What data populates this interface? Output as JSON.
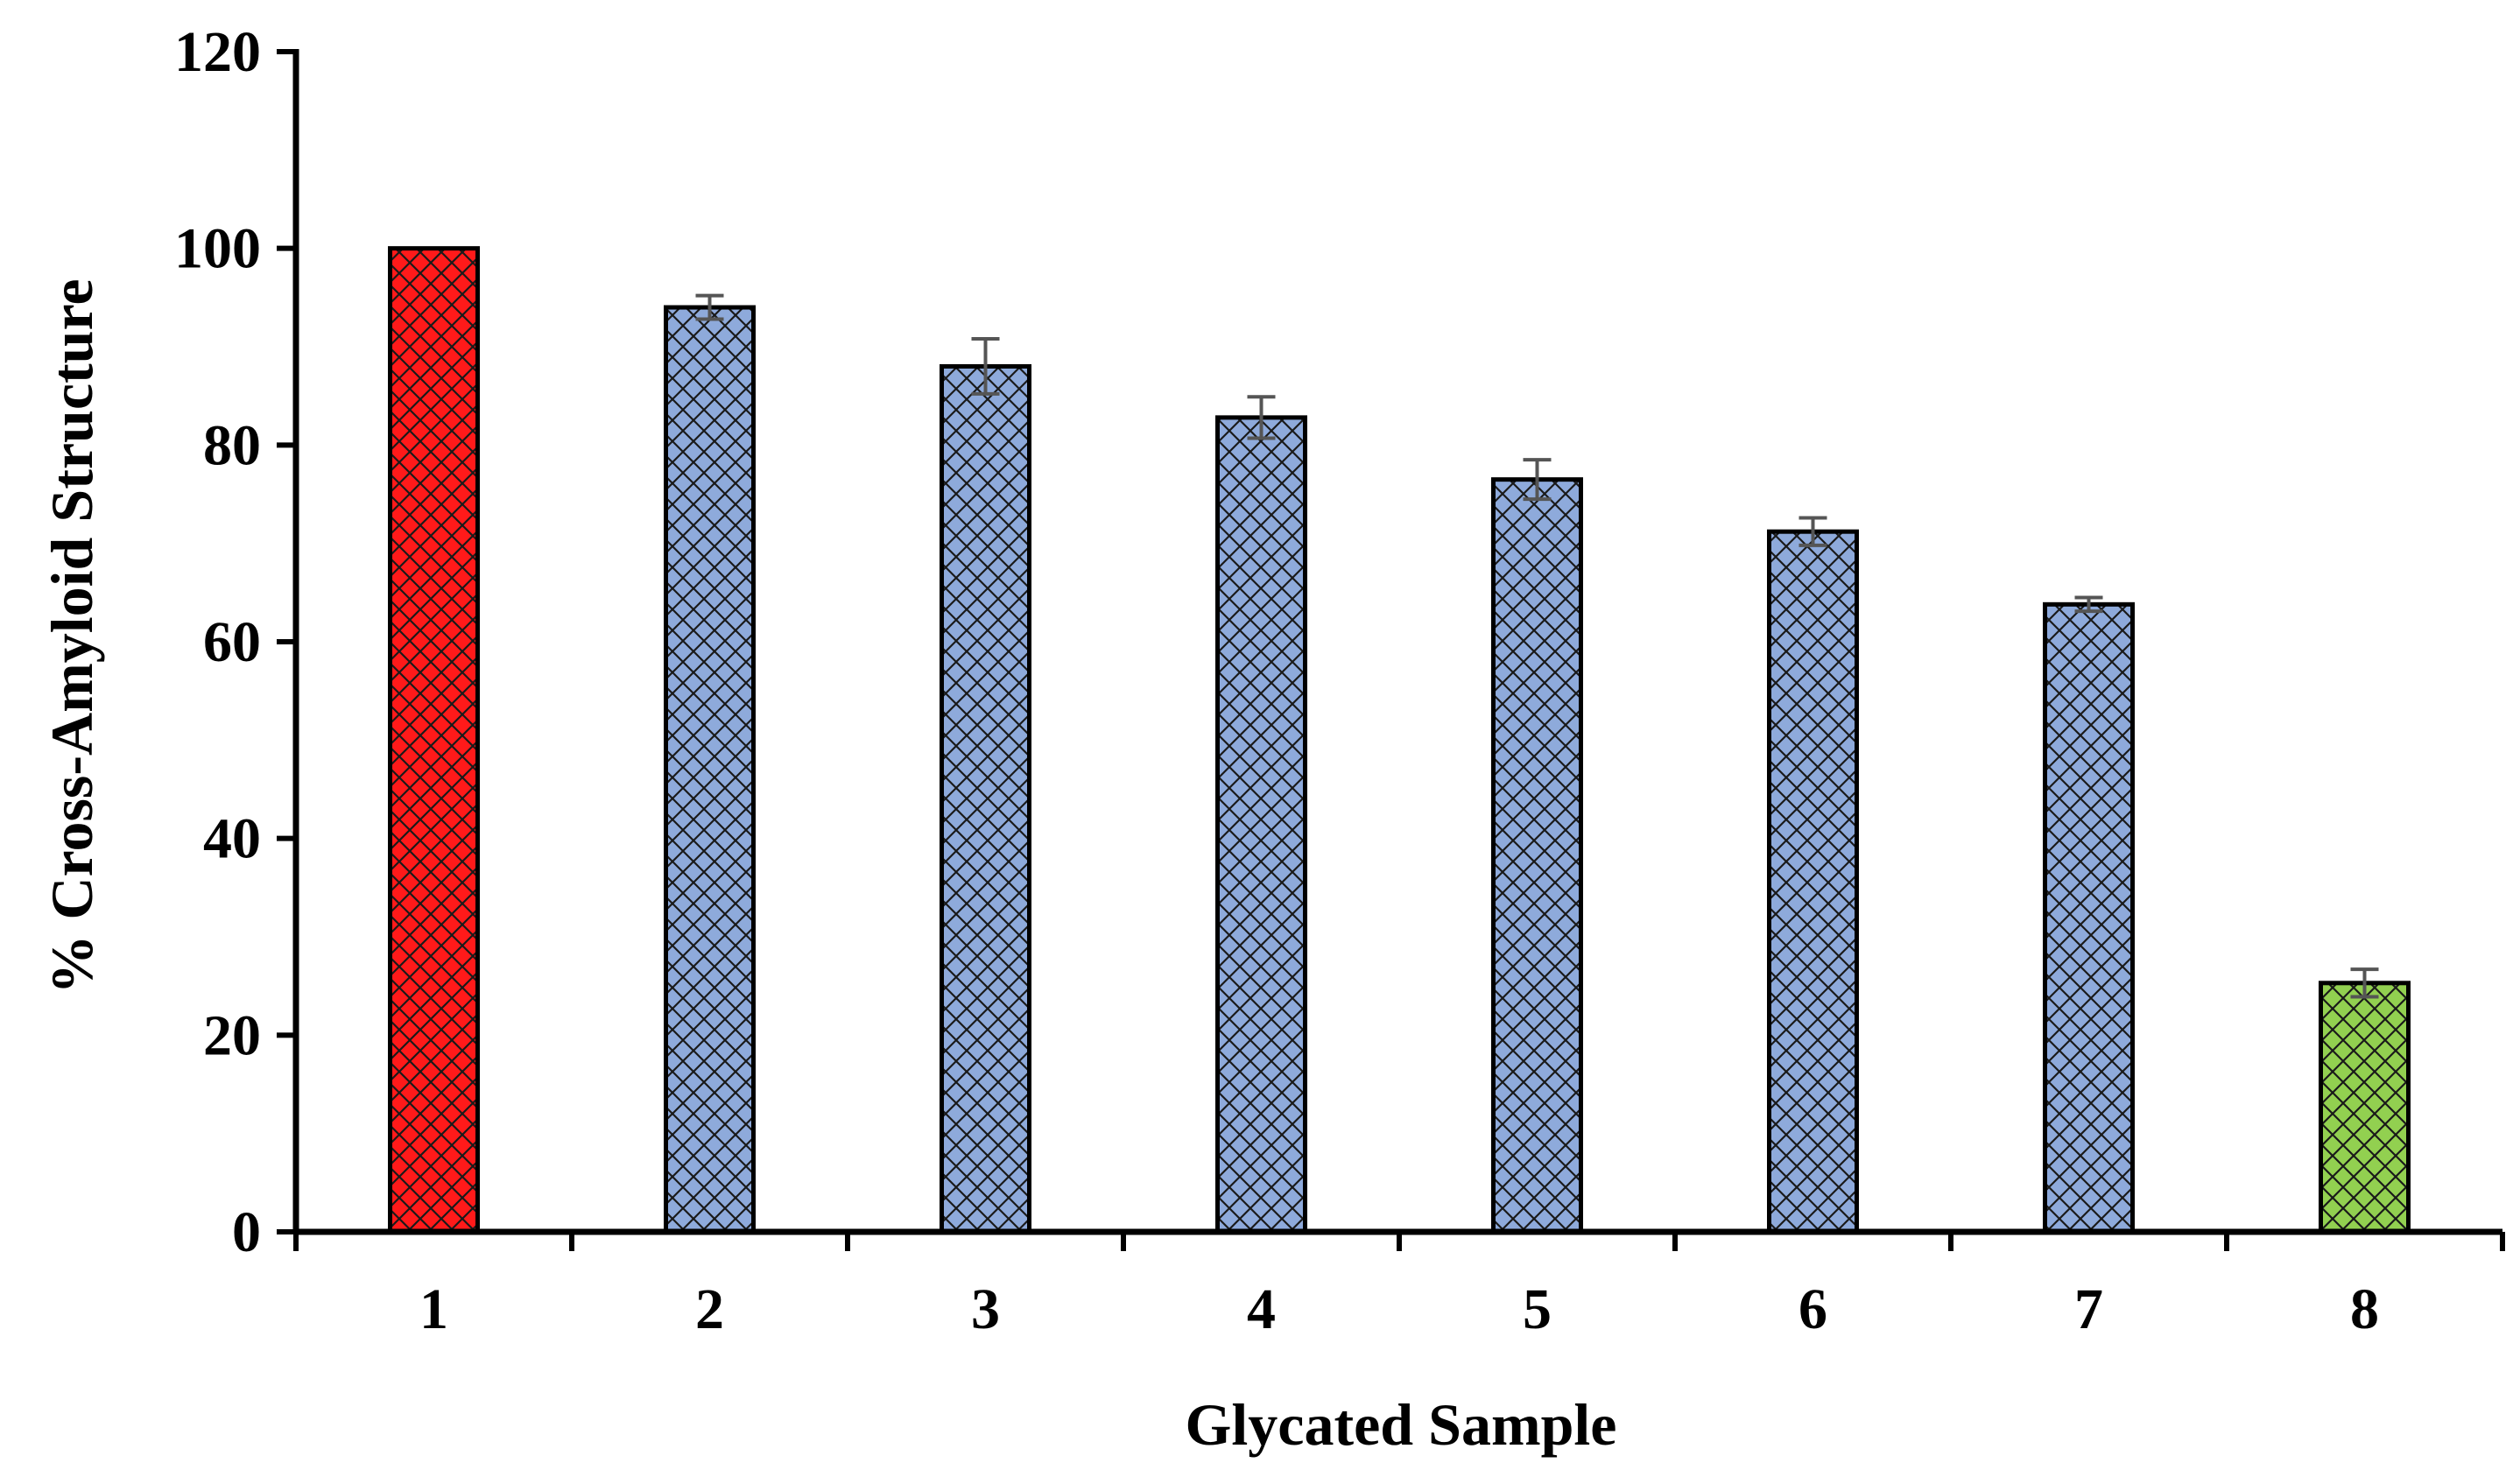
{
  "chart_data": {
    "type": "bar",
    "title": "",
    "xlabel": "Glycated Sample",
    "ylabel": "% Cross-Amyloid Structure",
    "categories": [
      "1",
      "2",
      "3",
      "4",
      "5",
      "6",
      "7",
      "8"
    ],
    "values": [
      100,
      94,
      88,
      82.8,
      76.5,
      71.2,
      63.8,
      25.3
    ],
    "errors": [
      0,
      1.2,
      2.8,
      2.1,
      2.0,
      1.4,
      0.7,
      1.4
    ],
    "bar_colors": [
      "#ff1a1a",
      "#8eaadb",
      "#8eaadb",
      "#8eaadb",
      "#8eaadb",
      "#8eaadb",
      "#8eaadb",
      "#92d050"
    ],
    "ylim": [
      0,
      120
    ],
    "yticks": [
      0,
      20,
      40,
      60,
      80,
      100,
      120
    ],
    "grid": false,
    "legend": "none",
    "pattern": "diagonal-crosshatch"
  }
}
